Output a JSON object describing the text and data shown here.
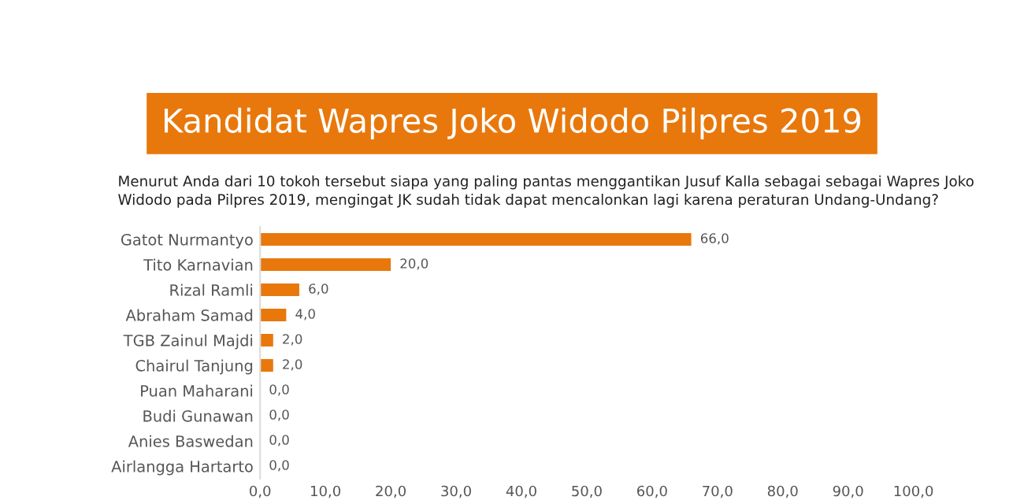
{
  "chart_data": {
    "type": "bar",
    "orientation": "horizontal",
    "title": "Kandidat Wapres Joko Widodo Pilpres 2019",
    "subtitle": "Menurut Anda dari 10 tokoh tersebut siapa yang paling pantas menggantikan Jusuf Kalla sebagai sebagai Wapres Joko\nWidodo pada Pilpres 2019, mengingat JK sudah tidak dapat mencalonkan lagi karena peraturan Undang-Undang?",
    "categories": [
      "Gatot Nurmantyo",
      "Tito Karnavian",
      "Rizal Ramli",
      "Abraham Samad",
      "TGB Zainul Majdi",
      "Chairul Tanjung",
      "Puan Maharani",
      "Budi Gunawan",
      "Anies Baswedan",
      "Airlangga Hartarto"
    ],
    "values": [
      66,
      20,
      6,
      4,
      2,
      2,
      0,
      0,
      0,
      0
    ],
    "value_labels": [
      "66,0",
      "20,0",
      "6,0",
      "4,0",
      "2,0",
      "2,0",
      "0,0",
      "0,0",
      "0,0",
      "0,0"
    ],
    "color": "#e8780c",
    "xlim": [
      0,
      100
    ],
    "xticks": [
      {
        "value": 0,
        "label": "0,0"
      },
      {
        "value": 10,
        "label": "10,0"
      },
      {
        "value": 20,
        "label": "20,0"
      },
      {
        "value": 30,
        "label": "30,0"
      },
      {
        "value": 40,
        "label": "40,0"
      },
      {
        "value": 50,
        "label": "50,0"
      },
      {
        "value": 60,
        "label": "60,0"
      },
      {
        "value": 70,
        "label": "70,0"
      },
      {
        "value": 80,
        "label": "80,0"
      },
      {
        "value": 90,
        "label": "90,0"
      },
      {
        "value": 100,
        "label": "100,0"
      }
    ],
    "grid": false,
    "legend": false
  }
}
